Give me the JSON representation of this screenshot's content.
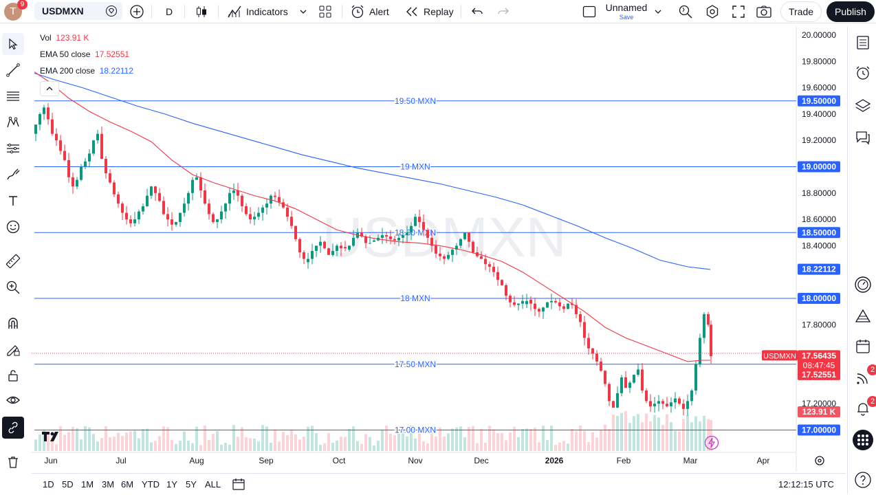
{
  "header": {
    "avatar_letter": "T",
    "notification_count": "9",
    "symbol": "USDMXN",
    "interval": "D",
    "indicators_label": "Indicators",
    "alert_label": "Alert",
    "replay_label": "Replay",
    "layout_name": "Unnamed",
    "layout_save": "Save",
    "trade_label": "Trade",
    "publish_label": "Publish"
  },
  "legend": {
    "vol_label": "Vol",
    "vol_value": "123.91 K",
    "ema50_label": "EMA 50 close",
    "ema50_value": "17.52551",
    "ema200_label": "EMA 200 close",
    "ema200_value": "18.22112"
  },
  "watermark": "USDMXN",
  "chart_data": {
    "type": "candlestick",
    "symbol": "USDMXN",
    "x_labels": [
      "Jun",
      "Jul",
      "Aug",
      "Sep",
      "Oct",
      "Nov",
      "Dec",
      "2026",
      "Feb",
      "Mar",
      "Apr"
    ],
    "y_ticks": [
      "20.00000",
      "19.80000",
      "19.60000",
      "19.40000",
      "19.20000",
      "18.80000",
      "18.60000",
      "18.40000",
      "17.80000",
      "17.20000"
    ],
    "ylim": [
      16.82,
      20.08
    ],
    "horizontal_lines": [
      {
        "label": "19.50 MXN",
        "value": 19.5,
        "price_label": "19.50000"
      },
      {
        "label": "19 MXN",
        "value": 19.0,
        "price_label": "19.00000"
      },
      {
        "label": "18.50 MXN",
        "value": 18.5,
        "price_label": "18.50000"
      },
      {
        "label": "18 MXN",
        "value": 18.0,
        "price_label": "18.00000"
      },
      {
        "label": "17.50 MXN",
        "value": 17.5,
        "price_label": "17.50000"
      },
      {
        "label": "17.00 MXN",
        "value": 17.0,
        "price_label": "17.00000"
      }
    ],
    "last_price": {
      "symbol_tag": "USDMXN",
      "price": "17.56435",
      "countdown": "08:47:45",
      "value": 17.56435
    },
    "ema50_tag": {
      "value_label": "17.52551",
      "value": 17.52551
    },
    "ema200_tag": {
      "value_label": "18.22112",
      "value": 18.22112
    },
    "volume_tag": "123.91 K",
    "colors": {
      "up": "#089981",
      "down": "#f23645",
      "ema50": "#f23645",
      "ema200": "#2962ff",
      "hline": "#2962ff"
    },
    "ema200_points": [
      [
        0,
        19.71
      ],
      [
        30,
        19.66
      ],
      [
        70,
        19.6
      ],
      [
        110,
        19.53
      ],
      [
        150,
        19.46
      ],
      [
        190,
        19.4
      ],
      [
        230,
        19.33
      ],
      [
        270,
        19.27
      ],
      [
        310,
        19.21
      ],
      [
        350,
        19.15
      ],
      [
        390,
        19.09
      ],
      [
        430,
        19.04
      ],
      [
        470,
        18.99
      ],
      [
        510,
        18.95
      ],
      [
        550,
        18.91
      ],
      [
        590,
        18.87
      ],
      [
        630,
        18.82
      ],
      [
        670,
        18.77
      ],
      [
        710,
        18.71
      ],
      [
        750,
        18.63
      ],
      [
        790,
        18.55
      ],
      [
        830,
        18.46
      ],
      [
        870,
        18.38
      ],
      [
        910,
        18.29
      ],
      [
        950,
        18.24
      ],
      [
        983,
        18.22
      ]
    ],
    "ema50_points": [
      [
        0,
        19.72
      ],
      [
        20,
        19.65
      ],
      [
        50,
        19.52
      ],
      [
        80,
        19.42
      ],
      [
        110,
        19.34
      ],
      [
        140,
        19.27
      ],
      [
        170,
        19.19
      ],
      [
        200,
        19.05
      ],
      [
        230,
        18.94
      ],
      [
        260,
        18.88
      ],
      [
        290,
        18.83
      ],
      [
        320,
        18.78
      ],
      [
        350,
        18.74
      ],
      [
        380,
        18.68
      ],
      [
        410,
        18.6
      ],
      [
        440,
        18.52
      ],
      [
        470,
        18.48
      ],
      [
        500,
        18.45
      ],
      [
        530,
        18.43
      ],
      [
        560,
        18.42
      ],
      [
        590,
        18.4
      ],
      [
        620,
        18.37
      ],
      [
        650,
        18.33
      ],
      [
        680,
        18.28
      ],
      [
        710,
        18.2
      ],
      [
        740,
        18.1
      ],
      [
        770,
        18.0
      ],
      [
        800,
        17.9
      ],
      [
        830,
        17.78
      ],
      [
        860,
        17.7
      ],
      [
        890,
        17.64
      ],
      [
        920,
        17.58
      ],
      [
        950,
        17.52
      ],
      [
        970,
        17.53
      ],
      [
        983,
        17.53
      ]
    ],
    "candle_path": [
      [
        0,
        19.25
      ],
      [
        6,
        19.32
      ],
      [
        12,
        19.4
      ],
      [
        18,
        19.45
      ],
      [
        24,
        19.36
      ],
      [
        30,
        19.25
      ],
      [
        36,
        19.2
      ],
      [
        42,
        19.12
      ],
      [
        48,
        19.05
      ],
      [
        54,
        18.92
      ],
      [
        60,
        18.85
      ],
      [
        66,
        18.9
      ],
      [
        72,
        19.0
      ],
      [
        78,
        19.04
      ],
      [
        84,
        19.1
      ],
      [
        90,
        19.2
      ],
      [
        96,
        19.25
      ],
      [
        102,
        19.06
      ],
      [
        108,
        18.95
      ],
      [
        114,
        18.88
      ],
      [
        120,
        18.79
      ],
      [
        126,
        18.72
      ],
      [
        132,
        18.65
      ],
      [
        138,
        18.6
      ],
      [
        144,
        18.57
      ],
      [
        150,
        18.6
      ],
      [
        156,
        18.66
      ],
      [
        162,
        18.7
      ],
      [
        168,
        18.78
      ],
      [
        174,
        18.85
      ],
      [
        180,
        18.8
      ],
      [
        186,
        18.74
      ],
      [
        192,
        18.64
      ],
      [
        198,
        18.6
      ],
      [
        204,
        18.56
      ],
      [
        210,
        18.58
      ],
      [
        216,
        18.65
      ],
      [
        222,
        18.72
      ],
      [
        228,
        18.8
      ],
      [
        234,
        18.9
      ],
      [
        240,
        18.92
      ],
      [
        246,
        18.82
      ],
      [
        252,
        18.72
      ],
      [
        258,
        18.64
      ],
      [
        264,
        18.58
      ],
      [
        270,
        18.6
      ],
      [
        276,
        18.66
      ],
      [
        282,
        18.72
      ],
      [
        288,
        18.8
      ],
      [
        294,
        18.82
      ],
      [
        300,
        18.78
      ],
      [
        306,
        18.7
      ],
      [
        312,
        18.64
      ],
      [
        318,
        18.6
      ],
      [
        324,
        18.62
      ],
      [
        330,
        18.65
      ],
      [
        336,
        18.69
      ],
      [
        342,
        18.72
      ],
      [
        348,
        18.78
      ],
      [
        354,
        18.77
      ],
      [
        360,
        18.73
      ],
      [
        366,
        18.69
      ],
      [
        372,
        18.62
      ],
      [
        378,
        18.55
      ],
      [
        384,
        18.45
      ],
      [
        390,
        18.35
      ],
      [
        396,
        18.3
      ],
      [
        402,
        18.3
      ],
      [
        408,
        18.36
      ],
      [
        414,
        18.4
      ],
      [
        420,
        18.43
      ],
      [
        426,
        18.38
      ],
      [
        432,
        18.33
      ],
      [
        438,
        18.36
      ],
      [
        444,
        18.4
      ],
      [
        450,
        18.38
      ],
      [
        456,
        18.37
      ],
      [
        462,
        18.4
      ],
      [
        468,
        18.46
      ],
      [
        474,
        18.5
      ],
      [
        480,
        18.47
      ],
      [
        486,
        18.42
      ],
      [
        492,
        18.43
      ],
      [
        498,
        18.44
      ],
      [
        504,
        18.46
      ],
      [
        510,
        18.48
      ],
      [
        516,
        18.47
      ],
      [
        522,
        18.45
      ],
      [
        528,
        18.44
      ],
      [
        534,
        18.46
      ],
      [
        540,
        18.48
      ],
      [
        546,
        18.5
      ],
      [
        552,
        18.55
      ],
      [
        558,
        18.62
      ],
      [
        564,
        18.58
      ],
      [
        570,
        18.52
      ],
      [
        576,
        18.46
      ],
      [
        582,
        18.4
      ],
      [
        588,
        18.34
      ],
      [
        594,
        18.32
      ],
      [
        600,
        18.3
      ],
      [
        606,
        18.33
      ],
      [
        612,
        18.37
      ],
      [
        618,
        18.4
      ],
      [
        624,
        18.45
      ],
      [
        630,
        18.5
      ],
      [
        636,
        18.43
      ],
      [
        642,
        18.35
      ],
      [
        648,
        18.32
      ],
      [
        654,
        18.3
      ],
      [
        660,
        18.26
      ],
      [
        666,
        18.24
      ],
      [
        672,
        18.2
      ],
      [
        678,
        18.14
      ],
      [
        684,
        18.1
      ],
      [
        690,
        18.02
      ],
      [
        696,
        17.97
      ],
      [
        702,
        17.95
      ],
      [
        708,
        17.96
      ],
      [
        714,
        17.98
      ],
      [
        720,
        17.99
      ],
      [
        726,
        17.96
      ],
      [
        732,
        17.92
      ],
      [
        738,
        17.9
      ],
      [
        744,
        17.93
      ],
      [
        750,
        17.97
      ],
      [
        756,
        17.98
      ],
      [
        762,
        17.97
      ],
      [
        768,
        17.94
      ],
      [
        774,
        17.92
      ],
      [
        780,
        17.96
      ],
      [
        786,
        17.95
      ],
      [
        792,
        17.88
      ],
      [
        798,
        17.82
      ],
      [
        804,
        17.7
      ],
      [
        810,
        17.62
      ],
      [
        816,
        17.58
      ],
      [
        822,
        17.52
      ],
      [
        828,
        17.45
      ],
      [
        834,
        17.35
      ],
      [
        840,
        17.22
      ],
      [
        846,
        17.17
      ],
      [
        852,
        17.28
      ],
      [
        858,
        17.4
      ],
      [
        864,
        17.32
      ],
      [
        870,
        17.36
      ],
      [
        876,
        17.42
      ],
      [
        882,
        17.46
      ],
      [
        888,
        17.3
      ],
      [
        894,
        17.22
      ],
      [
        900,
        17.18
      ],
      [
        906,
        17.2
      ],
      [
        912,
        17.22
      ],
      [
        918,
        17.2
      ],
      [
        924,
        17.18
      ],
      [
        930,
        17.21
      ],
      [
        936,
        17.24
      ],
      [
        942,
        17.2
      ],
      [
        948,
        17.16
      ],
      [
        954,
        17.22
      ],
      [
        960,
        17.3
      ],
      [
        966,
        17.5
      ],
      [
        972,
        17.7
      ],
      [
        978,
        17.88
      ],
      [
        982,
        17.8
      ],
      [
        985,
        17.56
      ]
    ],
    "volume_tag_color": "#f23645"
  },
  "time_ranges": [
    "1D",
    "5D",
    "1M",
    "3M",
    "6M",
    "YTD",
    "1Y",
    "5Y",
    "ALL"
  ],
  "clock": "12:12:15 UTC",
  "right_sidebar": {
    "signals_badge": "2",
    "alerts_badge": "2"
  }
}
